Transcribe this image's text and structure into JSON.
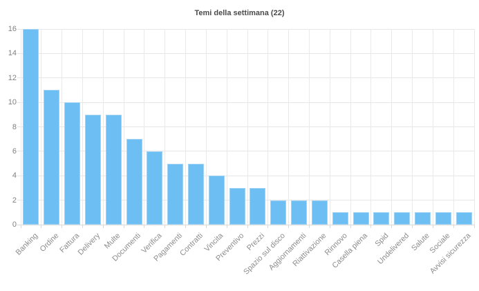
{
  "title": "Temi della settimana (22)",
  "colors": {
    "background": "#ffffff",
    "bar": "#6dbef3",
    "grid": "#e6e6e6",
    "axis_baseline": "#d9d9d9",
    "title_text": "#4a4a4a",
    "y_tick_label": "#808080",
    "x_tick_label": "#8c8c8c"
  },
  "chart_data": {
    "type": "bar",
    "title": "Temi della settimana (22)",
    "xlabel": "",
    "ylabel": "",
    "categories": [
      "Banking",
      "Ordine",
      "Fattura",
      "Delivery",
      "Multe",
      "Documenti",
      "Verifica",
      "Pagamenti",
      "Contratti",
      "Vincita",
      "Preventivo",
      "Prezzi",
      "Spazio sul disco",
      "Aggiornamenti",
      "Riattivazione",
      "Rinnovo",
      "Casella piena",
      "Spid",
      "Undelivered",
      "Salute",
      "Sociale",
      "Avvisi sicurezza"
    ],
    "values": [
      16,
      11,
      10,
      9,
      9,
      7,
      6,
      5,
      5,
      4,
      3,
      3,
      2,
      2,
      2,
      1,
      1,
      1,
      1,
      1,
      1,
      1
    ],
    "ylim": [
      0,
      16
    ],
    "yticks": [
      0,
      2,
      4,
      6,
      8,
      10,
      12,
      14,
      16
    ],
    "grid": "horizontal-and-vertical",
    "legend": "none",
    "bar_color": "#6dbef3",
    "x_label_rotation": -45
  }
}
